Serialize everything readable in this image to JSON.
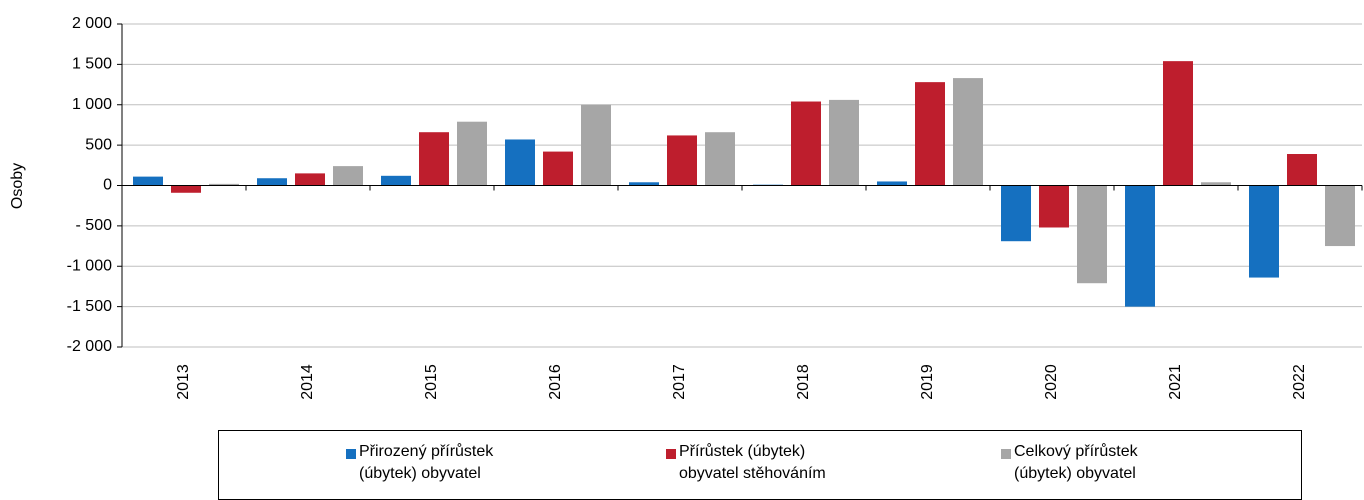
{
  "chart_data": {
    "type": "bar",
    "y_label": "Osoby",
    "categories": [
      "2013",
      "2014",
      "2015",
      "2016",
      "2017",
      "2018",
      "2019",
      "2020",
      "2021",
      "2022"
    ],
    "series": [
      {
        "name": "Přirozený přírůstek\n(úbytek) obyvatel",
        "color": "#1570c0",
        "values": [
          110,
          90,
          120,
          570,
          40,
          10,
          50,
          -690,
          -1500,
          -1140
        ]
      },
      {
        "name": "Přírůstek (úbytek)\nobyvatel stěhováním",
        "color": "#be1e2d",
        "values": [
          -90,
          150,
          660,
          420,
          620,
          1040,
          1280,
          -520,
          1540,
          390
        ]
      },
      {
        "name": "Celkový přírůstek\n(úbytek) obyvatel",
        "color": "#a6a6a6",
        "values": [
          20,
          240,
          790,
          1000,
          660,
          1060,
          1330,
          -1210,
          40,
          -750
        ]
      }
    ],
    "ylim": [
      -2000,
      2000
    ],
    "yticks": [
      {
        "value": 2000,
        "label": "2 000"
      },
      {
        "value": 1500,
        "label": "1 500"
      },
      {
        "value": 1000,
        "label": "1 000"
      },
      500,
      0,
      {
        "value": -500,
        "label": "- 500"
      },
      {
        "value": -1000,
        "label": "-1 000"
      },
      {
        "value": -1500,
        "label": "-1 500"
      },
      {
        "value": -2000,
        "label": "-2 000"
      }
    ],
    "grid": true
  }
}
